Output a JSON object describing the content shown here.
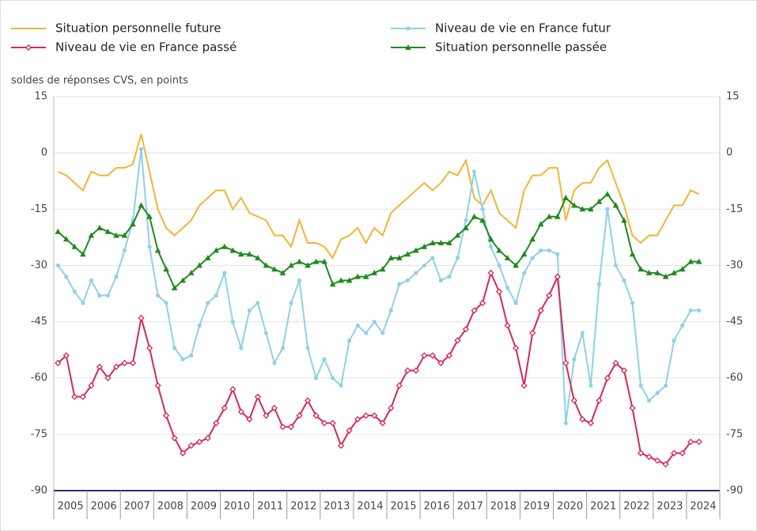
{
  "chart_data": {
    "type": "line",
    "y_axis_label": "soldes de réponses CVS, en points",
    "xlim": [
      2005,
      2025
    ],
    "xticks": [
      2005,
      2006,
      2007,
      2008,
      2009,
      2010,
      2011,
      2012,
      2013,
      2014,
      2015,
      2016,
      2017,
      2018,
      2019,
      2020,
      2021,
      2022,
      2023,
      2024
    ],
    "ylim": [
      -90,
      15
    ],
    "yticks": [
      15,
      0,
      -15,
      -30,
      -45,
      -60,
      -75,
      -90
    ],
    "y2lim": [
      -90,
      15
    ],
    "y2ticks": [
      15,
      0,
      -15,
      -30,
      -45,
      -60,
      -75,
      -90
    ],
    "grid": true,
    "legend": "top",
    "x": [
      2005.125,
      2005.375,
      2005.625,
      2005.875,
      2006.125,
      2006.375,
      2006.625,
      2006.875,
      2007.125,
      2007.375,
      2007.625,
      2007.875,
      2008.125,
      2008.375,
      2008.625,
      2008.875,
      2009.125,
      2009.375,
      2009.625,
      2009.875,
      2010.125,
      2010.375,
      2010.625,
      2010.875,
      2011.125,
      2011.375,
      2011.625,
      2011.875,
      2012.125,
      2012.375,
      2012.625,
      2012.875,
      2013.125,
      2013.375,
      2013.625,
      2013.875,
      2014.125,
      2014.375,
      2014.625,
      2014.875,
      2015.125,
      2015.375,
      2015.625,
      2015.875,
      2016.125,
      2016.375,
      2016.625,
      2016.875,
      2017.125,
      2017.375,
      2017.625,
      2017.875,
      2018.125,
      2018.375,
      2018.625,
      2018.875,
      2019.125,
      2019.375,
      2019.625,
      2019.875,
      2020.125,
      2020.375,
      2020.625,
      2020.875,
      2021.125,
      2021.375,
      2021.625,
      2021.875,
      2022.125,
      2022.375,
      2022.625,
      2022.875,
      2023.125,
      2023.375,
      2023.625,
      2023.875,
      2024.125,
      2024.375
    ],
    "series": [
      {
        "name": "Situation personnelle future",
        "color": "#f5b335",
        "marker": "none",
        "values": [
          -5,
          -6,
          -8,
          -10,
          -5,
          -6,
          -6,
          -4,
          -4,
          -3,
          5,
          -5,
          -15,
          -20,
          -22,
          -20,
          -18,
          -14,
          -12,
          -10,
          -10,
          -15,
          -12,
          -16,
          -17,
          -18,
          -22,
          -22,
          -25,
          -18,
          -24,
          -24,
          -25,
          -28,
          -23,
          -22,
          -20,
          -24,
          -20,
          -22,
          -16,
          -14,
          -12,
          -10,
          -8,
          -10,
          -8,
          -5,
          -6,
          -2,
          -12,
          -14,
          -10,
          -16,
          -18,
          -20,
          -10,
          -6,
          -6,
          -4,
          -4,
          -18,
          -10,
          -8,
          -8,
          -4,
          -2,
          -8,
          -14,
          -22,
          -24,
          -22,
          -22,
          -18,
          -14,
          -14,
          -10,
          -11
        ]
      },
      {
        "name": "Niveau de vie en France futur",
        "color": "#8fd0ea",
        "marker": "circle",
        "values": [
          -30,
          -33,
          -37,
          -40,
          -34,
          -38,
          -38,
          -33,
          -26,
          -18,
          1,
          -25,
          -38,
          -40,
          -52,
          -55,
          -54,
          -46,
          -40,
          -38,
          -32,
          -45,
          -52,
          -42,
          -40,
          -48,
          -56,
          -52,
          -40,
          -34,
          -52,
          -60,
          -55,
          -60,
          -62,
          -50,
          -46,
          -48,
          -45,
          -48,
          -42,
          -35,
          -34,
          -32,
          -30,
          -28,
          -34,
          -33,
          -28,
          -18,
          -5,
          -15,
          -25,
          -30,
          -36,
          -40,
          -32,
          -28,
          -26,
          -26,
          -27,
          -72,
          -55,
          -48,
          -62,
          -35,
          -15,
          -30,
          -34,
          -40,
          -62,
          -66,
          -64,
          -62,
          -50,
          -46,
          -42,
          -42
        ]
      },
      {
        "name": "Niveau de vie en France passé",
        "color": "#d6294f",
        "marker": "diamond",
        "values": [
          -56,
          -54,
          -65,
          -65,
          -62,
          -57,
          -60,
          -57,
          -56,
          -56,
          -44,
          -52,
          -62,
          -70,
          -76,
          -80,
          -78,
          -77,
          -76,
          -72,
          -68,
          -63,
          -69,
          -71,
          -65,
          -70,
          -68,
          -73,
          -73,
          -70,
          -66,
          -70,
          -72,
          -72,
          -78,
          -74,
          -71,
          -70,
          -70,
          -72,
          -68,
          -62,
          -58,
          -58,
          -54,
          -54,
          -56,
          -54,
          -50,
          -47,
          -42,
          -40,
          -32,
          -37,
          -46,
          -52,
          -62,
          -48,
          -42,
          -38,
          -33,
          -56,
          -66,
          -71,
          -72,
          -66,
          -60,
          -56,
          -58,
          -68,
          -80,
          -81,
          -82,
          -83,
          -80,
          -80,
          -77,
          -77
        ]
      },
      {
        "name": "Situation personnelle passée",
        "color": "#1f8a1f",
        "marker": "triangle",
        "values": [
          -21,
          -23,
          -25,
          -27,
          -22,
          -20,
          -21,
          -22,
          -22,
          -19,
          -14,
          -17,
          -26,
          -31,
          -36,
          -34,
          -32,
          -30,
          -28,
          -26,
          -25,
          -26,
          -27,
          -27,
          -28,
          -30,
          -31,
          -32,
          -30,
          -29,
          -30,
          -29,
          -29,
          -35,
          -34,
          -34,
          -33,
          -33,
          -32,
          -31,
          -28,
          -28,
          -27,
          -26,
          -25,
          -24,
          -24,
          -24,
          -22,
          -20,
          -17,
          -18,
          -23,
          -26,
          -28,
          -30,
          -27,
          -23,
          -19,
          -17,
          -17,
          -12,
          -14,
          -15,
          -15,
          -13,
          -11,
          -14,
          -18,
          -27,
          -31,
          -32,
          -32,
          -33,
          -32,
          -31,
          -29,
          -29
        ]
      }
    ]
  }
}
